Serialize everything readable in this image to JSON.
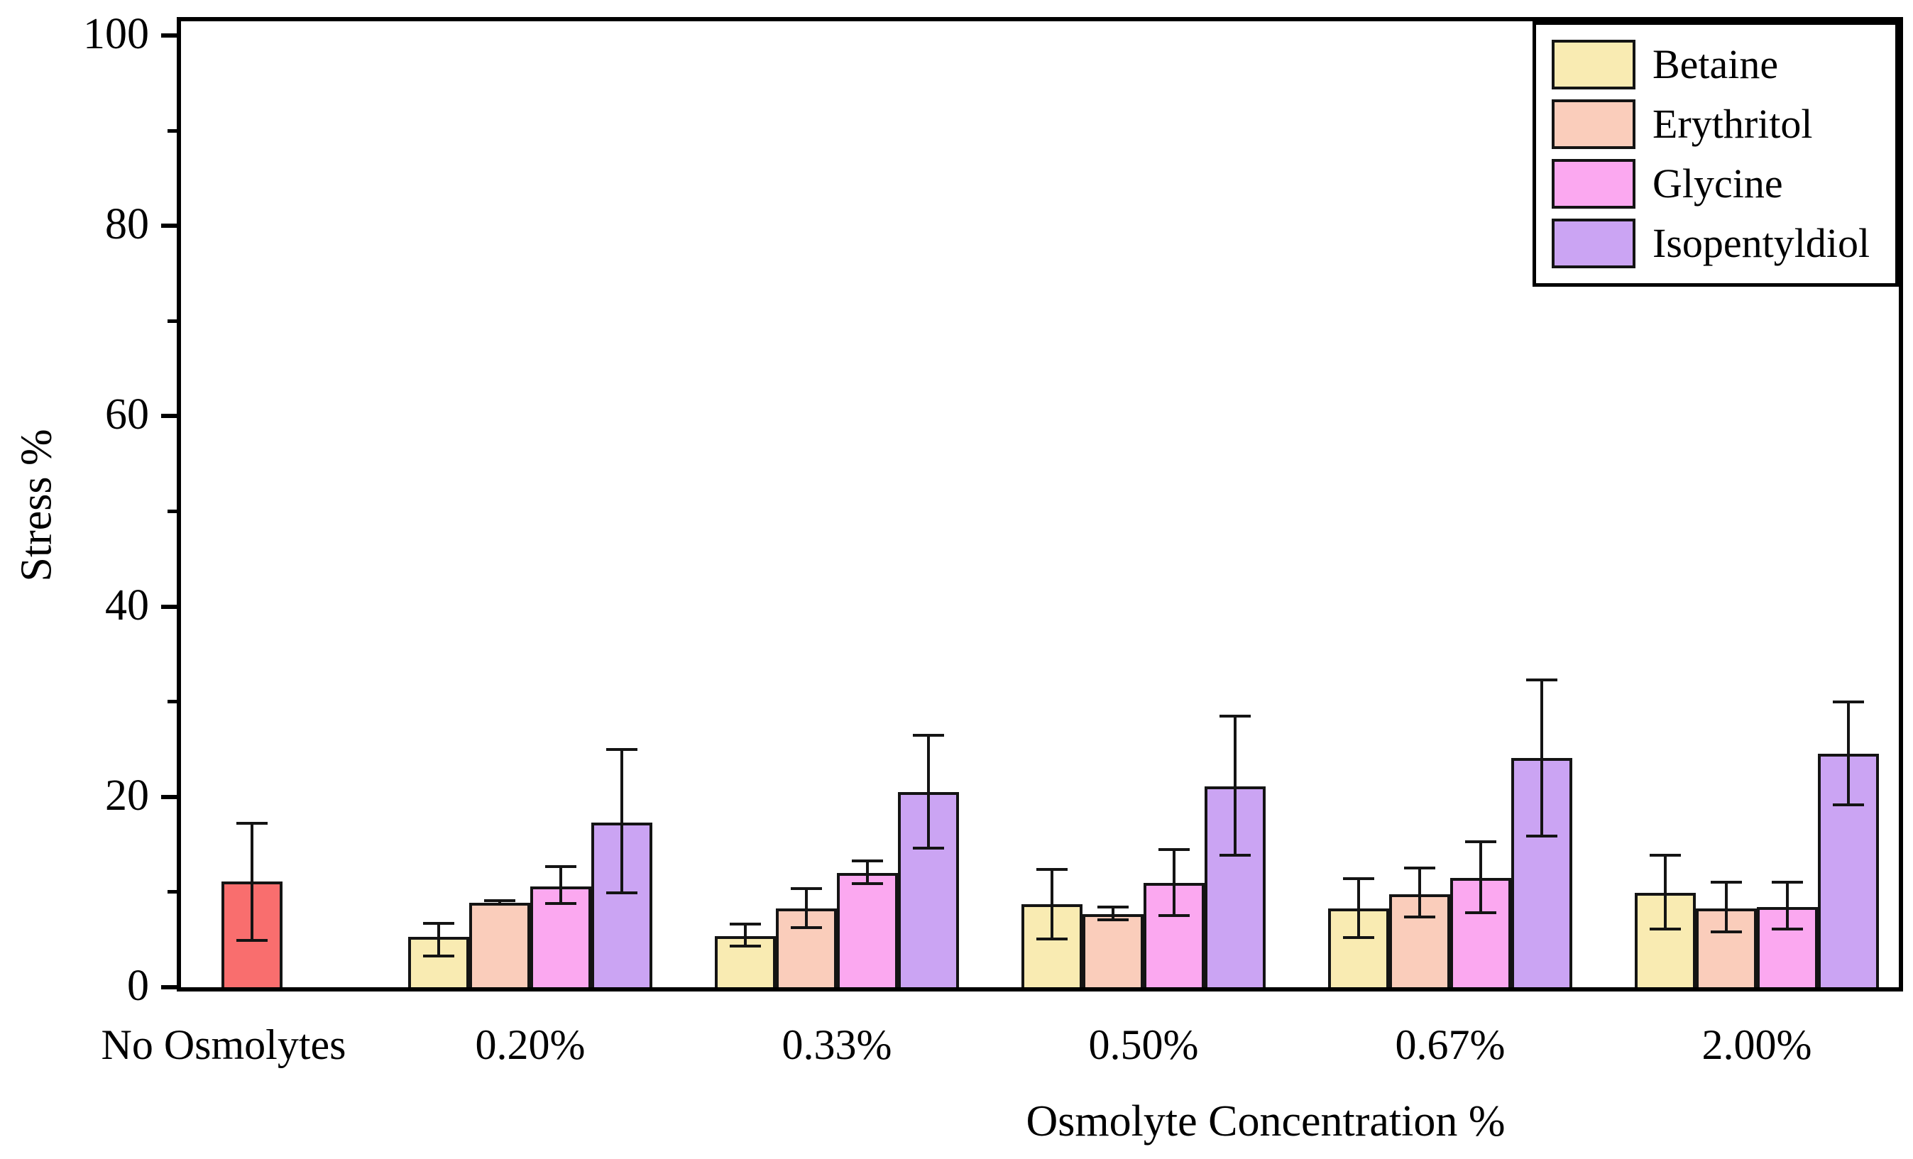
{
  "chart_data": {
    "type": "bar",
    "title": "",
    "xlabel": "Osmolyte Concentration %",
    "ylabel": "Stress %",
    "ylim": [
      0,
      100
    ],
    "grid": false,
    "legend_position": "top-right",
    "y_major_ticks": [
      0,
      20,
      40,
      60,
      80,
      100
    ],
    "y_minor_ticks": [
      10,
      30,
      50,
      70,
      90
    ],
    "categories": [
      "No Osmolytes",
      "0.20%",
      "0.33%",
      "0.50%",
      "0.67%",
      "2.00%"
    ],
    "control": {
      "label": "No Osmolytes",
      "value": 11.1,
      "error_up": 6.1,
      "error_down": 6.2,
      "color": "#F96E6E"
    },
    "series": [
      {
        "name": "Betaine",
        "color": "#F9EBB2",
        "values": [
          null,
          5.3,
          5.4,
          8.7,
          8.3,
          9.9
        ],
        "error_up": [
          null,
          1.4,
          1.2,
          3.7,
          3.1,
          4.0
        ],
        "error_down": [
          null,
          2.0,
          1.1,
          3.6,
          3.1,
          3.8
        ]
      },
      {
        "name": "Erythritol",
        "color": "#FACDBB",
        "values": [
          null,
          8.9,
          8.3,
          7.7,
          9.8,
          8.3
        ],
        "error_up": [
          null,
          0.2,
          2.1,
          0.7,
          2.7,
          2.7
        ],
        "error_down": [
          null,
          0.2,
          2.0,
          0.6,
          2.4,
          2.5
        ]
      },
      {
        "name": "Glycine",
        "color": "#FBA8F0",
        "values": [
          null,
          10.6,
          12.0,
          11.0,
          11.5,
          8.4
        ],
        "error_up": [
          null,
          2.1,
          1.3,
          3.5,
          3.8,
          2.6
        ],
        "error_down": [
          null,
          1.8,
          1.1,
          3.5,
          3.7,
          2.3
        ]
      },
      {
        "name": "Isopentyldiol",
        "color": "#CBA4F3",
        "values": [
          null,
          17.3,
          20.5,
          21.1,
          24.1,
          24.5
        ],
        "error_up": [
          null,
          7.7,
          6.0,
          7.4,
          8.2,
          5.5
        ],
        "error_down": [
          null,
          7.4,
          5.9,
          7.2,
          8.2,
          5.3
        ]
      }
    ]
  }
}
